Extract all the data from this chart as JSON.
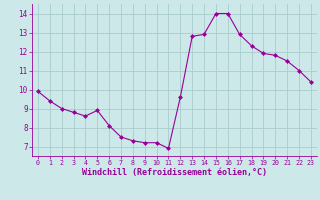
{
  "x": [
    0,
    1,
    2,
    3,
    4,
    5,
    6,
    7,
    8,
    9,
    10,
    11,
    12,
    13,
    14,
    15,
    16,
    17,
    18,
    19,
    20,
    21,
    22,
    23
  ],
  "y": [
    9.9,
    9.4,
    9.0,
    8.8,
    8.6,
    8.9,
    8.1,
    7.5,
    7.3,
    7.2,
    7.2,
    6.9,
    9.6,
    12.8,
    12.9,
    14.0,
    14.0,
    12.9,
    12.3,
    11.9,
    11.8,
    11.5,
    11.0,
    10.4
  ],
  "line_color": "#990099",
  "marker": "D",
  "marker_size": 2.0,
  "bg_color": "#cce8e8",
  "grid_color": "#aacccc",
  "xlabel": "Windchill (Refroidissement éolien,°C)",
  "xlabel_color": "#990099",
  "tick_color": "#990099",
  "spine_color": "#990099",
  "ylim": [
    6.5,
    14.5
  ],
  "xlim": [
    -0.5,
    23.5
  ],
  "yticks": [
    7,
    8,
    9,
    10,
    11,
    12,
    13,
    14
  ],
  "xticks": [
    0,
    1,
    2,
    3,
    4,
    5,
    6,
    7,
    8,
    9,
    10,
    11,
    12,
    13,
    14,
    15,
    16,
    17,
    18,
    19,
    20,
    21,
    22,
    23
  ],
  "xtick_fontsize": 4.8,
  "ytick_fontsize": 5.5,
  "xlabel_fontsize": 6.0
}
